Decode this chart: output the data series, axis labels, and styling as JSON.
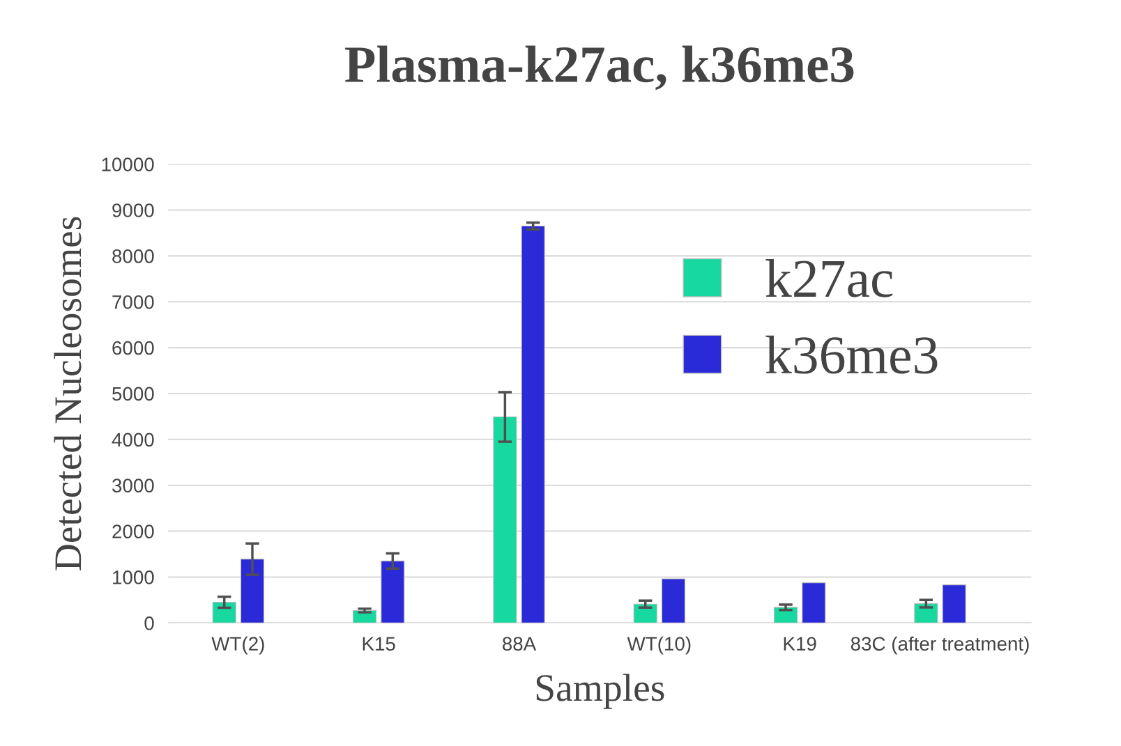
{
  "chart_data": {
    "type": "bar",
    "title": "Plasma-k27ac, k36me3",
    "xlabel": "Samples",
    "ylabel": "Detected Nucleosomes",
    "categories": [
      "WT(2)",
      "K15",
      "88A",
      "WT(10)",
      "K19",
      "83C (after treatment)"
    ],
    "series": [
      {
        "name": "k27ac",
        "color": "#17d9a0",
        "values": [
          450,
          270,
          4490,
          410,
          340,
          420
        ],
        "errors": [
          120,
          40,
          540,
          75,
          60,
          80
        ]
      },
      {
        "name": "k36me3",
        "color": "#2a2ad8",
        "values": [
          1390,
          1350,
          8650,
          960,
          875,
          830
        ],
        "errors": [
          340,
          165,
          75,
          null,
          null,
          null
        ]
      }
    ],
    "ylim": [
      0,
      10000
    ],
    "yticks": [
      0,
      1000,
      2000,
      3000,
      4000,
      5000,
      6000,
      7000,
      8000,
      9000,
      10000
    ],
    "grid": "y",
    "legend": "top right"
  }
}
